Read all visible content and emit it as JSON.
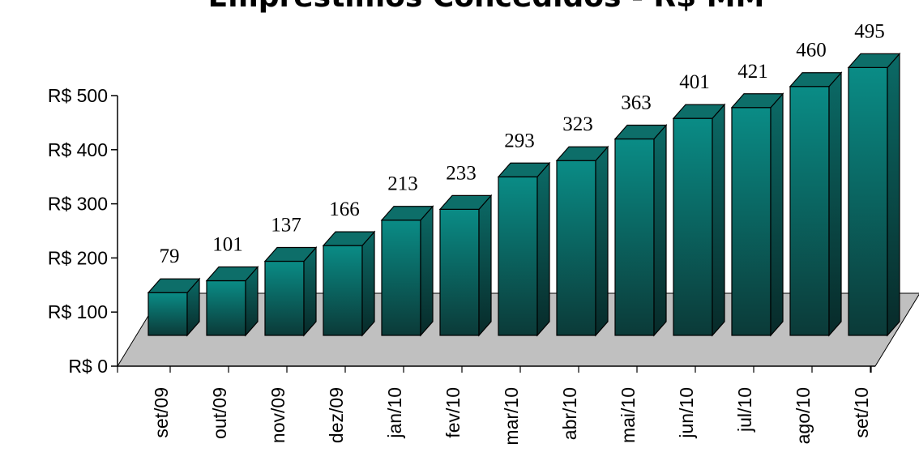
{
  "chart_data": {
    "type": "bar",
    "title": "Empréstimos Concedidos - R$ MM",
    "categories": [
      "set/09",
      "out/09",
      "nov/09",
      "dez/09",
      "jan/10",
      "fev/10",
      "mar/10",
      "abr/10",
      "mai/10",
      "jun/10",
      "jul/10",
      "ago/10",
      "set/10"
    ],
    "values": [
      79,
      101,
      137,
      166,
      213,
      233,
      293,
      323,
      363,
      401,
      421,
      460,
      495
    ],
    "yticks": [
      "R$ 0",
      "R$ 100",
      "R$ 200",
      "R$ 300",
      "R$ 400",
      "R$ 500"
    ],
    "ylim": [
      0,
      500
    ],
    "xlabel": "",
    "ylabel": "",
    "legend": "none",
    "grid": false,
    "colors": {
      "bar_front_top": "#0a8c86",
      "bar_front_bottom": "#0b3a38",
      "bar_side": "#0b5c58",
      "bar_top": "#0d6e69",
      "floor": "#c0c0c0"
    }
  }
}
